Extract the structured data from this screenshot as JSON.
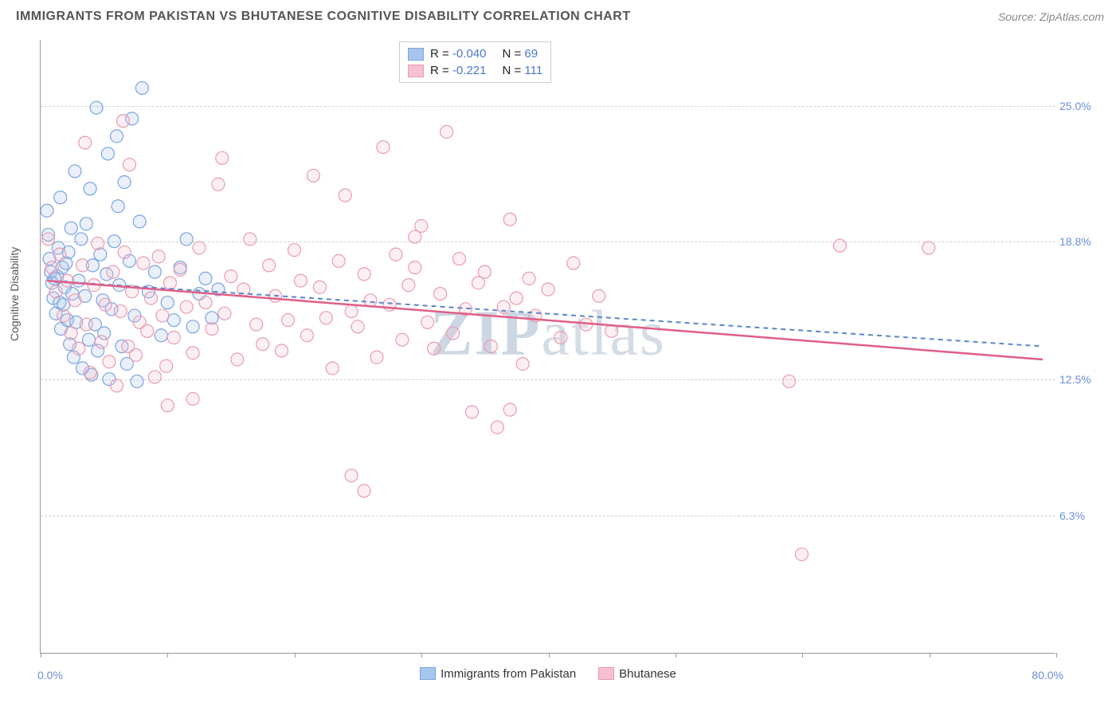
{
  "title": "IMMIGRANTS FROM PAKISTAN VS BHUTANESE COGNITIVE DISABILITY CORRELATION CHART",
  "source_label": "Source: ZipAtlas.com",
  "ylabel": "Cognitive Disability",
  "watermark": {
    "bold": "ZIP",
    "rest": "atlas"
  },
  "chart": {
    "type": "scatter",
    "xlim": [
      0.0,
      80.0
    ],
    "ylim": [
      0.0,
      28.0
    ],
    "x_limit_labels": {
      "min": "0.0%",
      "max": "80.0%"
    },
    "y_ticks": [
      {
        "value": 6.3,
        "label": "6.3%"
      },
      {
        "value": 12.5,
        "label": "12.5%"
      },
      {
        "value": 18.8,
        "label": "18.8%"
      },
      {
        "value": 25.0,
        "label": "25.0%"
      }
    ],
    "x_tick_positions": [
      0,
      10,
      20,
      30,
      40,
      50,
      60,
      70,
      80
    ],
    "background_color": "#ffffff",
    "grid_color": "#d0d0d0",
    "marker_radius": 8,
    "marker_fill_opacity": 0.25,
    "marker_stroke_width": 1.2,
    "series": [
      {
        "id": "pakistan",
        "label": "Immigrants from Pakistan",
        "color_stroke": "#7aa3e0",
        "color_fill": "#a8c5ed",
        "R": "-0.040",
        "N": "69",
        "trend": {
          "x1": 0.5,
          "y1": 17.0,
          "x2": 79.0,
          "y2": 14.0,
          "dash": "6,5",
          "width": 2,
          "color": "#5b86c9"
        },
        "points": [
          [
            0.5,
            20.2
          ],
          [
            0.6,
            19.1
          ],
          [
            0.7,
            18.0
          ],
          [
            0.8,
            17.4
          ],
          [
            0.9,
            16.9
          ],
          [
            1.0,
            16.2
          ],
          [
            1.1,
            17.1
          ],
          [
            1.2,
            15.5
          ],
          [
            1.3,
            17.2
          ],
          [
            1.4,
            18.5
          ],
          [
            1.5,
            16.0
          ],
          [
            1.6,
            14.8
          ],
          [
            1.7,
            17.6
          ],
          [
            1.8,
            15.9
          ],
          [
            1.9,
            16.7
          ],
          [
            2.0,
            17.8
          ],
          [
            2.1,
            15.2
          ],
          [
            2.2,
            18.3
          ],
          [
            2.3,
            14.1
          ],
          [
            2.4,
            19.4
          ],
          [
            2.5,
            16.4
          ],
          [
            2.6,
            13.5
          ],
          [
            2.8,
            15.1
          ],
          [
            3.0,
            17.0
          ],
          [
            3.2,
            18.9
          ],
          [
            3.3,
            13.0
          ],
          [
            3.5,
            16.3
          ],
          [
            3.6,
            19.6
          ],
          [
            3.8,
            14.3
          ],
          [
            4.0,
            12.7
          ],
          [
            4.1,
            17.7
          ],
          [
            4.3,
            15.0
          ],
          [
            4.5,
            13.8
          ],
          [
            4.7,
            18.2
          ],
          [
            4.9,
            16.1
          ],
          [
            5.0,
            14.6
          ],
          [
            5.2,
            17.3
          ],
          [
            5.4,
            12.5
          ],
          [
            5.6,
            15.7
          ],
          [
            5.8,
            18.8
          ],
          [
            6.0,
            23.6
          ],
          [
            6.2,
            16.8
          ],
          [
            6.4,
            14.0
          ],
          [
            6.6,
            21.5
          ],
          [
            6.8,
            13.2
          ],
          [
            7.0,
            17.9
          ],
          [
            7.2,
            24.4
          ],
          [
            7.4,
            15.4
          ],
          [
            7.6,
            12.4
          ],
          [
            7.8,
            19.7
          ],
          [
            8.0,
            25.8
          ],
          [
            4.4,
            24.9
          ],
          [
            5.3,
            22.8
          ],
          [
            6.1,
            20.4
          ],
          [
            3.9,
            21.2
          ],
          [
            2.7,
            22.0
          ],
          [
            1.55,
            20.8
          ],
          [
            8.5,
            16.5
          ],
          [
            9.0,
            17.4
          ],
          [
            9.5,
            14.5
          ],
          [
            10.0,
            16.0
          ],
          [
            10.5,
            15.2
          ],
          [
            11.0,
            17.6
          ],
          [
            11.5,
            18.9
          ],
          [
            12.0,
            14.9
          ],
          [
            12.5,
            16.4
          ],
          [
            13.0,
            17.1
          ],
          [
            13.5,
            15.3
          ],
          [
            14.0,
            16.6
          ]
        ]
      },
      {
        "id": "bhutanese",
        "label": "Bhutanese",
        "color_stroke": "#e89bb0",
        "color_fill": "#f5c1d0",
        "R": "-0.221",
        "N": "111",
        "trend": {
          "x1": 0.5,
          "y1": 17.0,
          "x2": 79.0,
          "y2": 13.4,
          "dash": "none",
          "width": 2.5,
          "color": "#e05e86"
        },
        "points": [
          [
            0.6,
            18.9
          ],
          [
            0.9,
            17.6
          ],
          [
            1.2,
            16.5
          ],
          [
            1.5,
            18.2
          ],
          [
            1.8,
            15.4
          ],
          [
            2.1,
            17.0
          ],
          [
            2.4,
            14.6
          ],
          [
            2.7,
            16.1
          ],
          [
            3.0,
            13.9
          ],
          [
            3.3,
            17.7
          ],
          [
            3.6,
            15.0
          ],
          [
            3.9,
            12.8
          ],
          [
            4.2,
            16.8
          ],
          [
            4.5,
            18.7
          ],
          [
            4.8,
            14.2
          ],
          [
            5.1,
            15.9
          ],
          [
            5.4,
            13.3
          ],
          [
            5.7,
            17.4
          ],
          [
            6.0,
            12.2
          ],
          [
            6.3,
            15.6
          ],
          [
            6.6,
            18.3
          ],
          [
            6.9,
            14.0
          ],
          [
            7.2,
            16.5
          ],
          [
            7.5,
            13.6
          ],
          [
            7.8,
            15.1
          ],
          [
            8.1,
            17.8
          ],
          [
            8.4,
            14.7
          ],
          [
            8.7,
            16.2
          ],
          [
            9.0,
            12.6
          ],
          [
            9.3,
            18.1
          ],
          [
            9.6,
            15.4
          ],
          [
            9.9,
            13.1
          ],
          [
            10.2,
            16.9
          ],
          [
            10.5,
            14.4
          ],
          [
            11.0,
            17.5
          ],
          [
            11.5,
            15.8
          ],
          [
            12.0,
            13.7
          ],
          [
            12.5,
            18.5
          ],
          [
            13.0,
            16.0
          ],
          [
            13.5,
            14.8
          ],
          [
            14.0,
            21.4
          ],
          [
            14.5,
            15.5
          ],
          [
            15.0,
            17.2
          ],
          [
            15.5,
            13.4
          ],
          [
            16.0,
            16.6
          ],
          [
            16.5,
            18.9
          ],
          [
            17.0,
            15.0
          ],
          [
            17.5,
            14.1
          ],
          [
            18.0,
            17.7
          ],
          [
            18.5,
            16.3
          ],
          [
            19.0,
            13.8
          ],
          [
            19.5,
            15.2
          ],
          [
            20.0,
            18.4
          ],
          [
            20.5,
            17.0
          ],
          [
            21.0,
            14.5
          ],
          [
            21.5,
            21.8
          ],
          [
            22.0,
            16.7
          ],
          [
            22.5,
            15.3
          ],
          [
            23.0,
            13.0
          ],
          [
            23.5,
            17.9
          ],
          [
            24.0,
            20.9
          ],
          [
            24.5,
            15.6
          ],
          [
            25.0,
            14.9
          ],
          [
            25.5,
            17.3
          ],
          [
            26.0,
            16.1
          ],
          [
            26.5,
            13.5
          ],
          [
            27.0,
            23.1
          ],
          [
            27.5,
            15.9
          ],
          [
            28.0,
            18.2
          ],
          [
            28.5,
            14.3
          ],
          [
            29.0,
            16.8
          ],
          [
            29.5,
            17.6
          ],
          [
            30.0,
            19.5
          ],
          [
            30.5,
            15.1
          ],
          [
            31.0,
            13.9
          ],
          [
            31.5,
            16.4
          ],
          [
            32.0,
            23.8
          ],
          [
            32.5,
            14.6
          ],
          [
            33.0,
            18.0
          ],
          [
            33.5,
            15.7
          ],
          [
            34.0,
            11.0
          ],
          [
            34.5,
            16.9
          ],
          [
            35.0,
            17.4
          ],
          [
            35.5,
            14.0
          ],
          [
            36.0,
            10.3
          ],
          [
            36.5,
            15.8
          ],
          [
            37.0,
            19.8
          ],
          [
            37.5,
            16.2
          ],
          [
            38.0,
            13.2
          ],
          [
            38.5,
            17.1
          ],
          [
            39.0,
            15.4
          ],
          [
            40.0,
            16.6
          ],
          [
            41.0,
            14.4
          ],
          [
            42.0,
            17.8
          ],
          [
            43.0,
            15.0
          ],
          [
            44.0,
            16.3
          ],
          [
            45.0,
            14.7
          ],
          [
            3.5,
            23.3
          ],
          [
            7.0,
            22.3
          ],
          [
            10.0,
            11.3
          ],
          [
            12.0,
            11.6
          ],
          [
            24.5,
            8.1
          ],
          [
            25.5,
            7.4
          ],
          [
            37.0,
            11.1
          ],
          [
            59.0,
            12.4
          ],
          [
            60.0,
            4.5
          ],
          [
            63.0,
            18.6
          ],
          [
            70.0,
            18.5
          ],
          [
            6.5,
            24.3
          ],
          [
            14.3,
            22.6
          ],
          [
            29.5,
            19.0
          ]
        ]
      }
    ]
  },
  "legend_top": {
    "rows": [
      {
        "swatch_series": "pakistan",
        "R_label": "R",
        "N_label": "N"
      },
      {
        "swatch_series": "bhutanese",
        "R_label": "R",
        "N_label": "N"
      }
    ]
  }
}
